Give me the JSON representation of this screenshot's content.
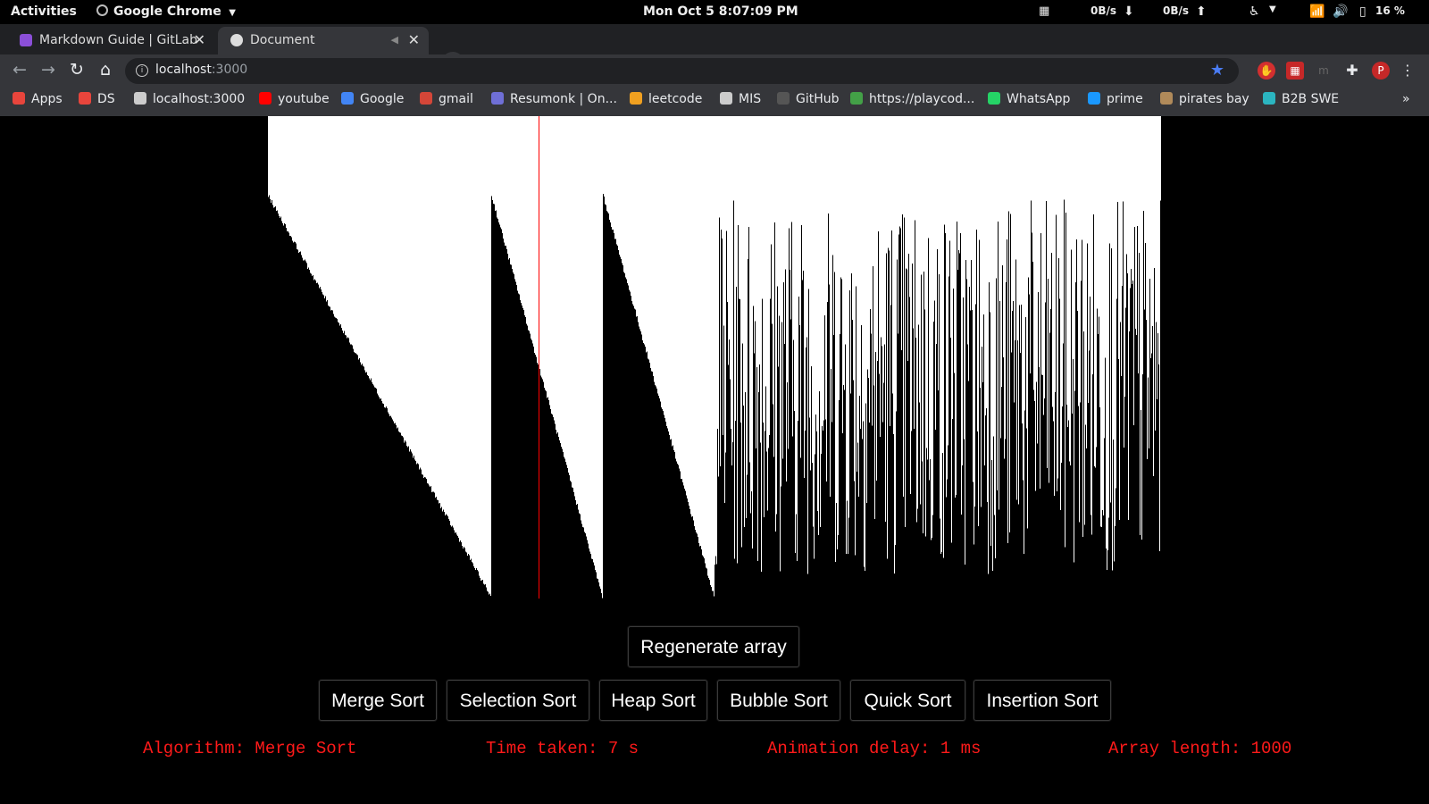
{
  "system_bar": {
    "activities": "Activities",
    "app": "Google Chrome",
    "clock": "Mon Oct 5  8:07:09 PM",
    "net_down": "0B/s",
    "net_up": "0B/s",
    "battery": "16 %"
  },
  "browser": {
    "tabs": [
      {
        "label": "Markdown Guide | GitLab",
        "icon": "gitlab-icon",
        "active": false
      },
      {
        "label": "Document",
        "icon": "globe-icon",
        "active": true
      }
    ],
    "new_tab": "+",
    "close_window": "✕",
    "url": {
      "host": "localhost",
      "port": ":3000"
    },
    "bookmarks": [
      {
        "label": "Apps",
        "color": "#e8453c"
      },
      {
        "label": "DS",
        "color": "#e8453c"
      },
      {
        "label": "localhost:3000",
        "color": "#cccccc"
      },
      {
        "label": "youtube",
        "color": "#ff0000"
      },
      {
        "label": "Google",
        "color": "#4285f4"
      },
      {
        "label": "gmail",
        "color": "#d44638"
      },
      {
        "label": "Resumonk | On...",
        "color": "#6f6fd6"
      },
      {
        "label": "leetcode",
        "color": "#f0a020"
      },
      {
        "label": "MIS",
        "color": "#cccccc"
      },
      {
        "label": "GitHub",
        "color": "#555555"
      },
      {
        "label": "https://playcod...",
        "color": "#43a047"
      },
      {
        "label": "WhatsApp",
        "color": "#25d366"
      },
      {
        "label": "prime",
        "color": "#1a98ff"
      },
      {
        "label": "pirates bay",
        "color": "#b08a5a"
      },
      {
        "label": "B2B SWE",
        "color": "#2bb5c0"
      }
    ],
    "more": "»"
  },
  "visualizer": {
    "array_length_value": 1000,
    "sorted_runs": [
      {
        "from": 0,
        "to": 250,
        "high": 0.835,
        "low": 0.005
      },
      {
        "from": 250,
        "to": 375,
        "high": 0.835,
        "low": 0.005
      },
      {
        "from": 375,
        "to": 500,
        "high": 0.835,
        "low": 0.005
      }
    ],
    "highlight_index": 303,
    "colors": {
      "bar": "#000000",
      "background": "#ffffff",
      "highlight": "#ff0000",
      "status": "#ff1a1a"
    },
    "buttons": {
      "regenerate": "Regenerate array",
      "merge": "Merge Sort",
      "selection": "Selection Sort",
      "heap": "Heap Sort",
      "bubble": "Bubble Sort",
      "quick": "Quick Sort",
      "insertion": "Insertion Sort"
    },
    "status": {
      "algorithm": "Algorithm: Merge Sort",
      "time": "Time taken: 7 s",
      "delay": "Animation delay: 1 ms",
      "length": "Array length: 1000"
    }
  }
}
